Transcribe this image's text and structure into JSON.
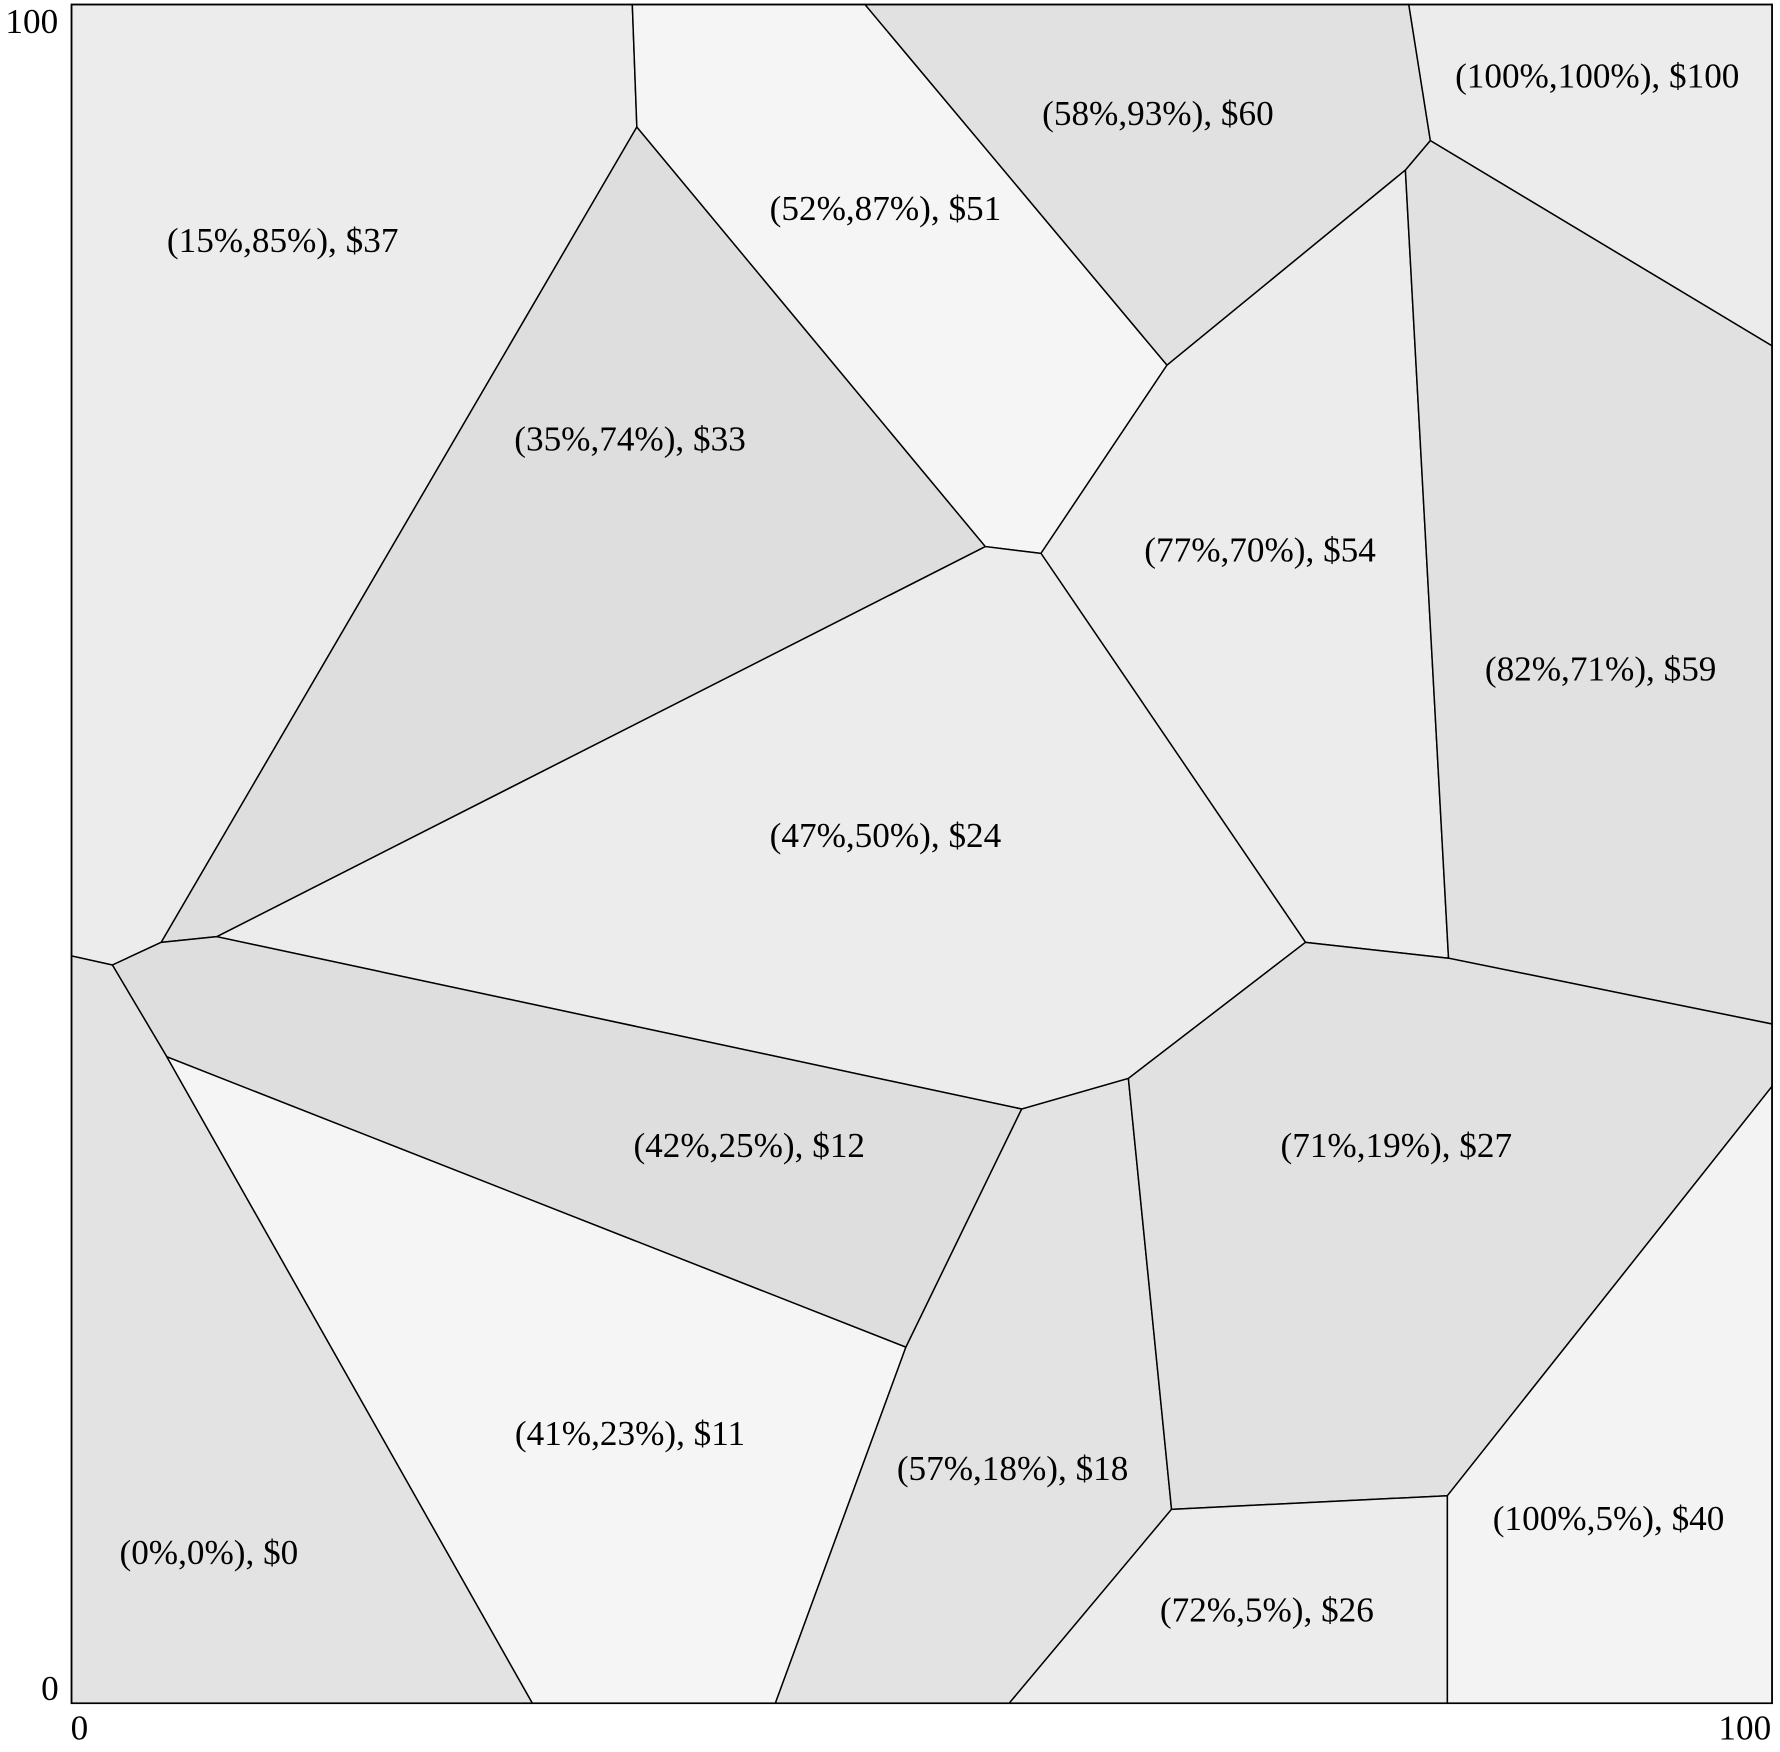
{
  "axes": {
    "y_top": "100",
    "y_bottom": "0",
    "x_left": "0",
    "x_right": "100"
  },
  "cells": [
    {
      "label": "(15%,85%), $37"
    },
    {
      "label": "(35%,74%), $33"
    },
    {
      "label": "(52%,87%), $51"
    },
    {
      "label": "(58%,93%), $60"
    },
    {
      "label": "(100%,100%), $100"
    },
    {
      "label": "(77%,70%), $54"
    },
    {
      "label": "(82%,71%), $59"
    },
    {
      "label": "(47%,50%), $24"
    },
    {
      "label": "(42%,25%), $12"
    },
    {
      "label": "(0%,0%), $0"
    },
    {
      "label": "(41%,23%), $11"
    },
    {
      "label": "(57%,18%), $18"
    },
    {
      "label": "(71%,19%), $27"
    },
    {
      "label": "(72%,5%), $26"
    },
    {
      "label": "(100%,5%), $40"
    }
  ]
}
